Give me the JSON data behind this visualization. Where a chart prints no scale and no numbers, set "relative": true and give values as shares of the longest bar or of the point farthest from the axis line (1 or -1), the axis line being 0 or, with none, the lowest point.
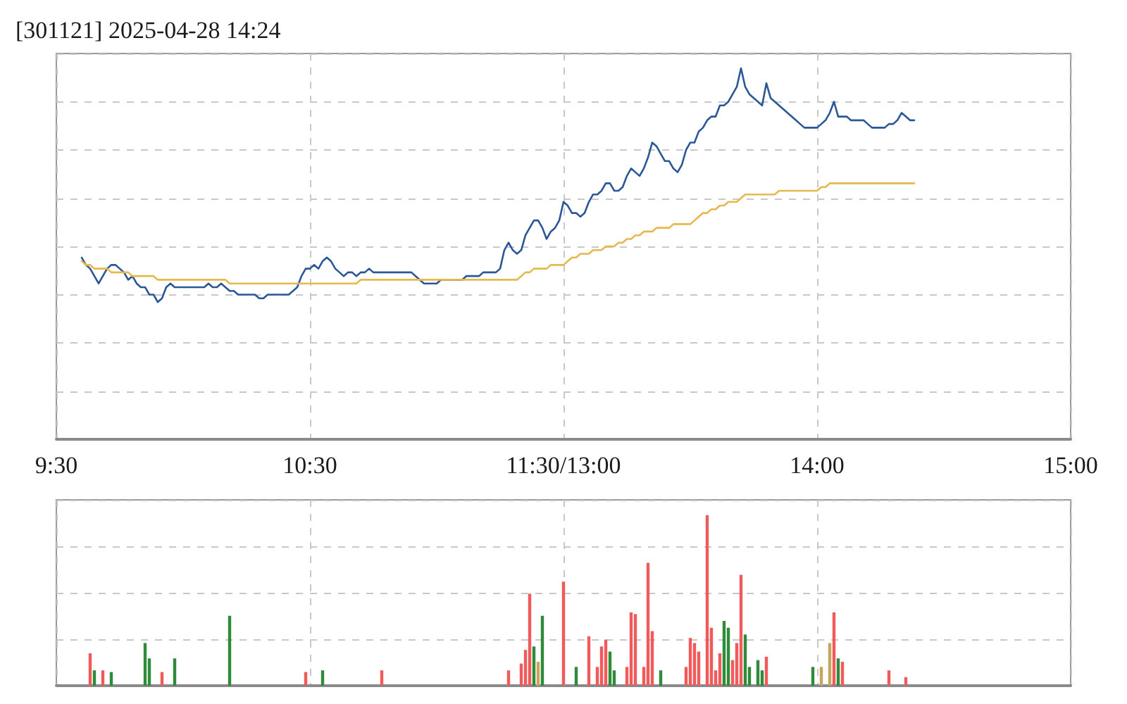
{
  "chart_data": [
    {
      "type": "line",
      "title": "[301121] 2025-04-28 14:24",
      "relative": true,
      "grid": true,
      "categories": [
        "9:30",
        null,
        null,
        null,
        null,
        null,
        null,
        null,
        null,
        null,
        null,
        null,
        null,
        null,
        null,
        null,
        null,
        null,
        null,
        null,
        null,
        null,
        null,
        null,
        null,
        null,
        null,
        null,
        null,
        null,
        null,
        null,
        null,
        null,
        null,
        null,
        null,
        null,
        null,
        null,
        null,
        null,
        null,
        null,
        null,
        null,
        null,
        null,
        null,
        null,
        null,
        null,
        null,
        null,
        null,
        null,
        null,
        null,
        null,
        null,
        "10:30",
        null,
        null,
        null,
        null,
        null,
        null,
        null,
        null,
        null,
        null,
        null,
        null,
        null,
        null,
        null,
        null,
        null,
        null,
        null,
        null,
        null,
        null,
        null,
        null,
        null,
        null,
        null,
        null,
        null,
        null,
        null,
        null,
        null,
        null,
        null,
        null,
        null,
        null,
        null,
        null,
        null,
        null,
        null,
        null,
        null,
        null,
        null,
        null,
        null,
        null,
        null,
        null,
        null,
        null,
        null,
        null,
        null,
        null,
        null,
        "11:30/13:00",
        null,
        null,
        null,
        null,
        null,
        null,
        null,
        null,
        null,
        null,
        null,
        null,
        null,
        null,
        null,
        null,
        null,
        null,
        null,
        null,
        null,
        null,
        null,
        null,
        null,
        null,
        null,
        null,
        null,
        null,
        null,
        null,
        null,
        null,
        null,
        null,
        null,
        null,
        null,
        null,
        null,
        null,
        null,
        null,
        null,
        null,
        null,
        null,
        null,
        null,
        null,
        null,
        null,
        null,
        null,
        null,
        null,
        null,
        null,
        "14:00",
        null,
        null,
        null,
        null,
        null,
        null,
        null,
        null,
        null,
        null,
        null,
        null,
        null,
        null,
        null,
        null,
        null,
        null,
        null,
        null,
        null,
        null,
        null,
        null,
        null,
        null,
        null,
        null,
        null,
        null,
        null,
        null,
        null,
        null,
        null,
        null,
        null,
        null,
        null,
        null,
        null,
        null,
        null,
        null,
        null,
        null,
        null,
        null,
        null,
        null,
        null,
        null,
        null,
        null,
        null,
        null,
        null,
        null,
        null,
        "15:00"
      ],
      "series": [
        {
          "color": "#2b5797",
          "values": [
            null,
            null,
            null,
            null,
            null,
            null,
            0.49,
            0.47,
            0.46,
            0.44,
            0.42,
            0.44,
            0.46,
            0.47,
            0.47,
            0.46,
            0.45,
            0.43,
            0.44,
            0.42,
            0.41,
            0.41,
            0.39,
            0.39,
            0.37,
            0.38,
            0.41,
            0.42,
            0.41,
            0.41,
            0.41,
            0.41,
            0.41,
            0.41,
            0.41,
            0.41,
            0.42,
            0.41,
            0.41,
            0.42,
            0.41,
            0.4,
            0.4,
            0.39,
            0.39,
            0.39,
            0.39,
            0.39,
            0.38,
            0.38,
            0.39,
            0.39,
            0.39,
            0.39,
            0.39,
            0.39,
            0.4,
            0.41,
            0.44,
            0.46,
            0.46,
            0.47,
            0.46,
            0.48,
            0.49,
            0.48,
            0.46,
            0.45,
            0.44,
            0.45,
            0.45,
            0.44,
            0.45,
            0.45,
            0.46,
            0.45,
            0.45,
            0.45,
            0.45,
            0.45,
            0.45,
            0.45,
            0.45,
            0.45,
            0.45,
            0.44,
            0.43,
            0.42,
            0.42,
            0.42,
            0.42,
            0.43,
            0.43,
            0.43,
            0.43,
            0.43,
            0.43,
            0.44,
            0.44,
            0.44,
            0.44,
            0.45,
            0.45,
            0.45,
            0.45,
            0.46,
            0.51,
            0.53,
            0.51,
            0.5,
            0.51,
            0.55,
            0.57,
            0.59,
            0.59,
            0.57,
            0.54,
            0.56,
            0.57,
            0.59,
            0.64,
            0.63,
            0.61,
            0.61,
            0.6,
            0.61,
            0.64,
            0.66,
            0.66,
            0.67,
            0.69,
            0.69,
            0.67,
            0.67,
            0.68,
            0.71,
            0.73,
            0.72,
            0.71,
            0.73,
            0.76,
            0.8,
            0.79,
            0.77,
            0.75,
            0.75,
            0.73,
            0.72,
            0.74,
            0.78,
            0.8,
            0.8,
            0.83,
            0.84,
            0.86,
            0.87,
            0.87,
            0.9,
            0.9,
            0.91,
            0.93,
            0.95,
            1,
            0.95,
            0.93,
            0.92,
            0.91,
            0.9,
            0.96,
            0.92,
            0.91,
            0.9,
            0.89,
            0.88,
            0.87,
            0.86,
            0.85,
            0.84,
            0.84,
            0.84,
            0.84,
            0.85,
            0.86,
            0.88,
            0.91,
            0.87,
            0.87,
            0.87,
            0.86,
            0.86,
            0.86,
            0.86,
            0.85,
            0.84,
            0.84,
            0.84,
            0.84,
            0.85,
            0.85,
            0.86,
            0.88,
            0.87,
            0.86,
            0.86,
            null,
            null,
            null,
            null,
            null,
            null,
            null,
            null,
            null,
            null,
            null,
            null,
            null,
            null,
            null,
            null,
            null,
            null,
            null,
            null,
            null,
            null,
            null,
            null,
            null,
            null,
            null,
            null,
            null,
            null,
            null,
            null,
            null,
            null,
            null,
            null,
            null
          ]
        },
        {
          "color": "#e5b94e",
          "values": [
            null,
            null,
            null,
            null,
            null,
            null,
            0.48,
            0.47,
            0.47,
            0.46,
            0.46,
            0.46,
            0.46,
            0.45,
            0.45,
            0.45,
            0.45,
            0.45,
            0.44,
            0.44,
            0.44,
            0.44,
            0.44,
            0.44,
            0.43,
            0.43,
            0.43,
            0.43,
            0.43,
            0.43,
            0.43,
            0.43,
            0.43,
            0.43,
            0.43,
            0.43,
            0.43,
            0.43,
            0.43,
            0.43,
            0.43,
            0.42,
            0.42,
            0.42,
            0.42,
            0.42,
            0.42,
            0.42,
            0.42,
            0.42,
            0.42,
            0.42,
            0.42,
            0.42,
            0.42,
            0.42,
            0.42,
            0.42,
            0.42,
            0.42,
            0.42,
            0.42,
            0.42,
            0.42,
            0.42,
            0.42,
            0.42,
            0.42,
            0.42,
            0.42,
            0.42,
            0.42,
            0.43,
            0.43,
            0.43,
            0.43,
            0.43,
            0.43,
            0.43,
            0.43,
            0.43,
            0.43,
            0.43,
            0.43,
            0.43,
            0.43,
            0.43,
            0.43,
            0.43,
            0.43,
            0.43,
            0.43,
            0.43,
            0.43,
            0.43,
            0.43,
            0.43,
            0.43,
            0.43,
            0.43,
            0.43,
            0.43,
            0.43,
            0.43,
            0.43,
            0.43,
            0.43,
            0.43,
            0.43,
            0.43,
            0.44,
            0.45,
            0.45,
            0.46,
            0.46,
            0.46,
            0.46,
            0.47,
            0.47,
            0.47,
            0.47,
            0.48,
            0.49,
            0.49,
            0.5,
            0.5,
            0.5,
            0.51,
            0.51,
            0.51,
            0.52,
            0.52,
            0.52,
            0.53,
            0.53,
            0.54,
            0.54,
            0.55,
            0.55,
            0.56,
            0.56,
            0.56,
            0.57,
            0.57,
            0.57,
            0.57,
            0.58,
            0.58,
            0.58,
            0.58,
            0.58,
            0.59,
            0.6,
            0.61,
            0.61,
            0.62,
            0.62,
            0.63,
            0.63,
            0.64,
            0.64,
            0.64,
            0.65,
            0.66,
            0.66,
            0.66,
            0.66,
            0.66,
            0.66,
            0.66,
            0.66,
            0.67,
            0.67,
            0.67,
            0.67,
            0.67,
            0.67,
            0.67,
            0.67,
            0.67,
            0.67,
            0.68,
            0.68,
            0.69,
            0.69,
            0.69,
            0.69,
            0.69,
            0.69,
            0.69,
            0.69,
            0.69,
            0.69,
            0.69,
            0.69,
            0.69,
            0.69,
            0.69,
            0.69,
            0.69,
            0.69,
            0.69,
            0.69,
            0.69,
            null,
            null,
            null,
            null,
            null,
            null,
            null,
            null,
            null,
            null,
            null,
            null,
            null,
            null,
            null,
            null,
            null,
            null,
            null,
            null,
            null,
            null,
            null,
            null,
            null,
            null,
            null,
            null,
            null,
            null,
            null,
            null,
            null,
            null,
            null,
            null,
            null
          ]
        }
      ]
    },
    {
      "type": "bar",
      "relative": true,
      "grid": true,
      "tick_labels": false,
      "categories": [
        null,
        null,
        null,
        null,
        null,
        null,
        null,
        null,
        null,
        null,
        null,
        null,
        null,
        null,
        null,
        null,
        null,
        null,
        null,
        null,
        null,
        null,
        null,
        null,
        null,
        null,
        null,
        null,
        null,
        null,
        null,
        null,
        null,
        null,
        null,
        null,
        null,
        null,
        null,
        null,
        null,
        null,
        null,
        null,
        null,
        null,
        null,
        null,
        null,
        null,
        null,
        null,
        null,
        null,
        null,
        null,
        null,
        null,
        null,
        null,
        null,
        null,
        null,
        null,
        null,
        null,
        null,
        null,
        null,
        null,
        null,
        null,
        null,
        null,
        null,
        null,
        null,
        null,
        null,
        null,
        null,
        null,
        null,
        null,
        null,
        null,
        null,
        null,
        null,
        null,
        null,
        null,
        null,
        null,
        null,
        null,
        null,
        null,
        null,
        null,
        null,
        null,
        null,
        null,
        null,
        null,
        null,
        null,
        null,
        null,
        null,
        null,
        null,
        null,
        null,
        null,
        null,
        null,
        null,
        null,
        null,
        null,
        null,
        null,
        null,
        null,
        null,
        null,
        null,
        null,
        null,
        null,
        null,
        null,
        null,
        null,
        null,
        null,
        null,
        null,
        null,
        null,
        null,
        null,
        null,
        null,
        null,
        null,
        null,
        null,
        null,
        null,
        null,
        null,
        null,
        null,
        null,
        null,
        null,
        null,
        null,
        null,
        null,
        null,
        null,
        null,
        null,
        null,
        null,
        null,
        null,
        null,
        null,
        null,
        null,
        null,
        null,
        null,
        null,
        null,
        null,
        null,
        null,
        null,
        null,
        null,
        null,
        null,
        null,
        null,
        null,
        null,
        null,
        null,
        null,
        null,
        null,
        null,
        null,
        null,
        null,
        null,
        null,
        null,
        null,
        null,
        null,
        null,
        null,
        null,
        null,
        null,
        null,
        null,
        null,
        null,
        null,
        null,
        null,
        null,
        null,
        null,
        null,
        null,
        null,
        null,
        null,
        null,
        null,
        null,
        null,
        null,
        null,
        null,
        null,
        null,
        null,
        null,
        null,
        null,
        null
      ],
      "values": [
        null,
        null,
        null,
        null,
        null,
        null,
        null,
        null,
        0.19,
        0.09,
        null,
        0.09,
        null,
        0.08,
        null,
        null,
        null,
        null,
        null,
        null,
        null,
        0.25,
        0.16,
        null,
        null,
        0.08,
        null,
        null,
        0.16,
        null,
        null,
        null,
        null,
        null,
        null,
        null,
        null,
        null,
        null,
        null,
        null,
        0.41,
        null,
        null,
        null,
        null,
        null,
        null,
        null,
        null,
        null,
        null,
        null,
        null,
        null,
        null,
        null,
        null,
        null,
        0.08,
        null,
        null,
        null,
        0.09,
        null,
        null,
        null,
        null,
        null,
        null,
        null,
        null,
        null,
        null,
        null,
        null,
        null,
        0.09,
        null,
        null,
        null,
        null,
        null,
        null,
        null,
        null,
        null,
        null,
        null,
        null,
        null,
        null,
        null,
        null,
        null,
        null,
        null,
        null,
        null,
        null,
        null,
        null,
        null,
        null,
        null,
        null,
        null,
        0.09,
        null,
        null,
        0.13,
        0.21,
        0.54,
        0.23,
        0.14,
        0.41,
        null,
        null,
        null,
        null,
        0.61,
        null,
        null,
        0.11,
        null,
        null,
        0.29,
        null,
        0.11,
        0.23,
        0.27,
        0.2,
        0.09,
        null,
        null,
        0.11,
        0.43,
        0.42,
        null,
        0.11,
        0.72,
        0.32,
        null,
        0.09,
        null,
        null,
        null,
        null,
        null,
        0.11,
        0.28,
        0.25,
        0.2,
        null,
        1,
        0.34,
        0.09,
        0.19,
        0.38,
        0.34,
        0.15,
        0.25,
        0.65,
        0.3,
        0.11,
        null,
        0.15,
        0.09,
        0.17,
        null,
        null,
        null,
        null,
        null,
        null,
        null,
        null,
        null,
        null,
        0.11,
        null,
        0.11,
        null,
        0.25,
        0.43,
        0.16,
        0.14,
        null,
        null,
        null,
        null,
        null,
        null,
        null,
        null,
        null,
        null,
        0.09,
        null,
        null,
        null,
        0.05,
        null,
        null,
        null,
        null,
        null,
        null,
        null,
        null,
        null,
        null,
        null,
        null,
        null,
        null,
        null,
        null,
        null,
        null,
        null,
        null,
        null,
        null,
        null,
        null,
        null,
        null,
        null,
        null,
        null,
        null,
        null,
        null,
        null,
        null,
        null,
        null,
        null,
        null,
        null
      ],
      "colors": [
        null,
        null,
        null,
        null,
        null,
        null,
        null,
        null,
        "#f05a5a",
        "#2e8b3a",
        null,
        "#f05a5a",
        null,
        "#2e8b3a",
        null,
        null,
        null,
        null,
        null,
        null,
        null,
        "#2e8b3a",
        "#2e8b3a",
        null,
        null,
        "#f05a5a",
        null,
        null,
        "#2e8b3a",
        null,
        null,
        null,
        null,
        null,
        null,
        null,
        null,
        null,
        null,
        null,
        null,
        "#2e8b3a",
        null,
        null,
        null,
        null,
        null,
        null,
        null,
        null,
        null,
        null,
        null,
        null,
        null,
        null,
        null,
        null,
        null,
        "#f05a5a",
        null,
        null,
        null,
        "#2e8b3a",
        null,
        null,
        null,
        null,
        null,
        null,
        null,
        null,
        null,
        null,
        null,
        null,
        null,
        "#f05a5a",
        null,
        null,
        null,
        null,
        null,
        null,
        null,
        null,
        null,
        null,
        null,
        null,
        null,
        null,
        null,
        null,
        null,
        null,
        null,
        null,
        null,
        null,
        null,
        null,
        null,
        null,
        null,
        null,
        null,
        "#f05a5a",
        null,
        null,
        "#f05a5a",
        "#f05a5a",
        "#f05a5a",
        "#2e8b3a",
        "#c9a45c",
        "#2e8b3a",
        null,
        null,
        null,
        null,
        "#f05a5a",
        null,
        null,
        "#2e8b3a",
        null,
        null,
        "#f05a5a",
        null,
        "#f05a5a",
        "#f05a5a",
        "#f05a5a",
        "#2e8b3a",
        "#2e8b3a",
        null,
        null,
        "#f05a5a",
        "#f05a5a",
        "#f05a5a",
        null,
        "#f05a5a",
        "#f05a5a",
        "#f05a5a",
        null,
        "#2e8b3a",
        null,
        null,
        null,
        null,
        null,
        "#f05a5a",
        "#f05a5a",
        "#f05a5a",
        "#f05a5a",
        null,
        "#f05a5a",
        "#f05a5a",
        "#f05a5a",
        "#f05a5a",
        "#2e8b3a",
        "#2e8b3a",
        "#f05a5a",
        "#f05a5a",
        "#f05a5a",
        "#2e8b3a",
        "#2e8b3a",
        null,
        "#2e8b3a",
        "#2e8b3a",
        "#f05a5a",
        null,
        null,
        null,
        null,
        null,
        null,
        null,
        null,
        null,
        null,
        "#2e8b3a",
        null,
        "#c9a45c",
        null,
        "#c9a45c",
        "#f05a5a",
        "#2e8b3a",
        "#f05a5a",
        null,
        null,
        null,
        null,
        null,
        null,
        null,
        null,
        null,
        null,
        "#f05a5a",
        null,
        null,
        null,
        "#f05a5a",
        null,
        null,
        null,
        null,
        null,
        null,
        null,
        null,
        null,
        null,
        null,
        null,
        null,
        null,
        null,
        null,
        null,
        null,
        null,
        null,
        null,
        null,
        null,
        null,
        null,
        null,
        null,
        null,
        null,
        null,
        null,
        null,
        null,
        null,
        null,
        null,
        null,
        null,
        null
      ]
    }
  ]
}
